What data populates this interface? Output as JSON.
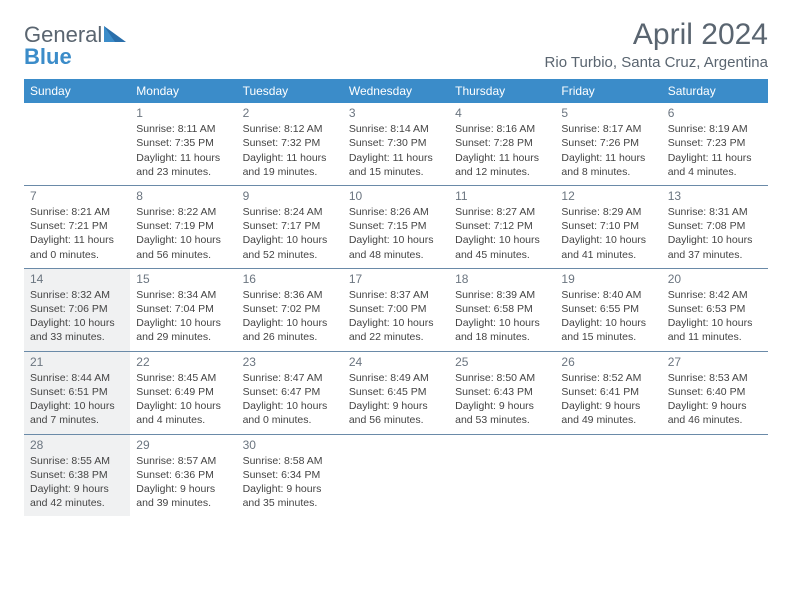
{
  "brand": {
    "word1": "General",
    "word2": "Blue"
  },
  "title": "April 2024",
  "location": "Rio Turbio, Santa Cruz, Argentina",
  "colors": {
    "header_bg": "#3b8cc9",
    "header_text": "#ffffff",
    "border": "#6a8aa8",
    "muted": "#5a6570",
    "body_text": "#444444",
    "shaded_bg": "#f0f1f2"
  },
  "day_headers": [
    "Sunday",
    "Monday",
    "Tuesday",
    "Wednesday",
    "Thursday",
    "Friday",
    "Saturday"
  ],
  "weeks": [
    [
      {
        "num": "",
        "lines": []
      },
      {
        "num": "1",
        "lines": [
          "Sunrise: 8:11 AM",
          "Sunset: 7:35 PM",
          "Daylight: 11 hours and 23 minutes."
        ]
      },
      {
        "num": "2",
        "lines": [
          "Sunrise: 8:12 AM",
          "Sunset: 7:32 PM",
          "Daylight: 11 hours and 19 minutes."
        ]
      },
      {
        "num": "3",
        "lines": [
          "Sunrise: 8:14 AM",
          "Sunset: 7:30 PM",
          "Daylight: 11 hours and 15 minutes."
        ]
      },
      {
        "num": "4",
        "lines": [
          "Sunrise: 8:16 AM",
          "Sunset: 7:28 PM",
          "Daylight: 11 hours and 12 minutes."
        ]
      },
      {
        "num": "5",
        "lines": [
          "Sunrise: 8:17 AM",
          "Sunset: 7:26 PM",
          "Daylight: 11 hours and 8 minutes."
        ]
      },
      {
        "num": "6",
        "lines": [
          "Sunrise: 8:19 AM",
          "Sunset: 7:23 PM",
          "Daylight: 11 hours and 4 minutes."
        ]
      }
    ],
    [
      {
        "num": "7",
        "lines": [
          "Sunrise: 8:21 AM",
          "Sunset: 7:21 PM",
          "Daylight: 11 hours and 0 minutes."
        ]
      },
      {
        "num": "8",
        "lines": [
          "Sunrise: 8:22 AM",
          "Sunset: 7:19 PM",
          "Daylight: 10 hours and 56 minutes."
        ]
      },
      {
        "num": "9",
        "lines": [
          "Sunrise: 8:24 AM",
          "Sunset: 7:17 PM",
          "Daylight: 10 hours and 52 minutes."
        ]
      },
      {
        "num": "10",
        "lines": [
          "Sunrise: 8:26 AM",
          "Sunset: 7:15 PM",
          "Daylight: 10 hours and 48 minutes."
        ]
      },
      {
        "num": "11",
        "lines": [
          "Sunrise: 8:27 AM",
          "Sunset: 7:12 PM",
          "Daylight: 10 hours and 45 minutes."
        ]
      },
      {
        "num": "12",
        "lines": [
          "Sunrise: 8:29 AM",
          "Sunset: 7:10 PM",
          "Daylight: 10 hours and 41 minutes."
        ]
      },
      {
        "num": "13",
        "lines": [
          "Sunrise: 8:31 AM",
          "Sunset: 7:08 PM",
          "Daylight: 10 hours and 37 minutes."
        ]
      }
    ],
    [
      {
        "num": "14",
        "shaded": true,
        "lines": [
          "Sunrise: 8:32 AM",
          "Sunset: 7:06 PM",
          "Daylight: 10 hours and 33 minutes."
        ]
      },
      {
        "num": "15",
        "lines": [
          "Sunrise: 8:34 AM",
          "Sunset: 7:04 PM",
          "Daylight: 10 hours and 29 minutes."
        ]
      },
      {
        "num": "16",
        "lines": [
          "Sunrise: 8:36 AM",
          "Sunset: 7:02 PM",
          "Daylight: 10 hours and 26 minutes."
        ]
      },
      {
        "num": "17",
        "lines": [
          "Sunrise: 8:37 AM",
          "Sunset: 7:00 PM",
          "Daylight: 10 hours and 22 minutes."
        ]
      },
      {
        "num": "18",
        "lines": [
          "Sunrise: 8:39 AM",
          "Sunset: 6:58 PM",
          "Daylight: 10 hours and 18 minutes."
        ]
      },
      {
        "num": "19",
        "lines": [
          "Sunrise: 8:40 AM",
          "Sunset: 6:55 PM",
          "Daylight: 10 hours and 15 minutes."
        ]
      },
      {
        "num": "20",
        "lines": [
          "Sunrise: 8:42 AM",
          "Sunset: 6:53 PM",
          "Daylight: 10 hours and 11 minutes."
        ]
      }
    ],
    [
      {
        "num": "21",
        "shaded": true,
        "lines": [
          "Sunrise: 8:44 AM",
          "Sunset: 6:51 PM",
          "Daylight: 10 hours and 7 minutes."
        ]
      },
      {
        "num": "22",
        "lines": [
          "Sunrise: 8:45 AM",
          "Sunset: 6:49 PM",
          "Daylight: 10 hours and 4 minutes."
        ]
      },
      {
        "num": "23",
        "lines": [
          "Sunrise: 8:47 AM",
          "Sunset: 6:47 PM",
          "Daylight: 10 hours and 0 minutes."
        ]
      },
      {
        "num": "24",
        "lines": [
          "Sunrise: 8:49 AM",
          "Sunset: 6:45 PM",
          "Daylight: 9 hours and 56 minutes."
        ]
      },
      {
        "num": "25",
        "lines": [
          "Sunrise: 8:50 AM",
          "Sunset: 6:43 PM",
          "Daylight: 9 hours and 53 minutes."
        ]
      },
      {
        "num": "26",
        "lines": [
          "Sunrise: 8:52 AM",
          "Sunset: 6:41 PM",
          "Daylight: 9 hours and 49 minutes."
        ]
      },
      {
        "num": "27",
        "lines": [
          "Sunrise: 8:53 AM",
          "Sunset: 6:40 PM",
          "Daylight: 9 hours and 46 minutes."
        ]
      }
    ],
    [
      {
        "num": "28",
        "shaded": true,
        "lines": [
          "Sunrise: 8:55 AM",
          "Sunset: 6:38 PM",
          "Daylight: 9 hours and 42 minutes."
        ]
      },
      {
        "num": "29",
        "lines": [
          "Sunrise: 8:57 AM",
          "Sunset: 6:36 PM",
          "Daylight: 9 hours and 39 minutes."
        ]
      },
      {
        "num": "30",
        "lines": [
          "Sunrise: 8:58 AM",
          "Sunset: 6:34 PM",
          "Daylight: 9 hours and 35 minutes."
        ]
      },
      {
        "num": "",
        "lines": []
      },
      {
        "num": "",
        "lines": []
      },
      {
        "num": "",
        "lines": []
      },
      {
        "num": "",
        "lines": []
      }
    ]
  ]
}
